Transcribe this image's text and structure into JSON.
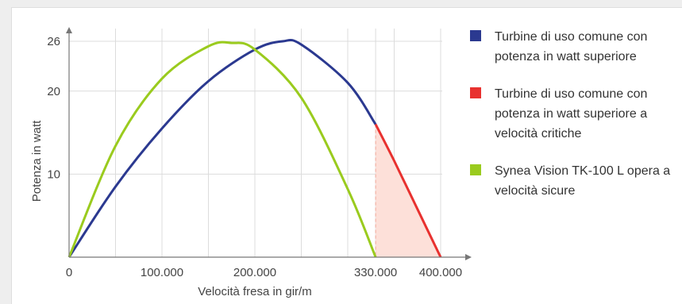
{
  "chart_data": {
    "type": "line",
    "title": "",
    "xlabel": "Velocità fresa in gir/m",
    "ylabel": "Potenza in watt",
    "xlim": [
      0,
      430000
    ],
    "ylim": [
      0,
      27.5
    ],
    "x_ticks": [
      {
        "value": 0,
        "label": "0"
      },
      {
        "value": 100000,
        "label": "100.000"
      },
      {
        "value": 200000,
        "label": "200.000"
      },
      {
        "value": 330000,
        "label": "330.000"
      },
      {
        "value": 400000,
        "label": "400.000"
      }
    ],
    "y_ticks": [
      {
        "value": 10,
        "label": "10"
      },
      {
        "value": 20,
        "label": "20"
      },
      {
        "value": 26,
        "label": "26"
      }
    ],
    "x_gridlines": [
      50000,
      100000,
      150000,
      200000,
      250000,
      300000,
      330000,
      350000,
      400000
    ],
    "y_gridlines": [
      10,
      20,
      26
    ],
    "grid": true,
    "legend_position": "right",
    "series": [
      {
        "name": "Turbine di uso comune con potenza in watt superiore",
        "color": "#2b3990",
        "x": [
          0,
          50000,
          100000,
          150000,
          200000,
          230000,
          250000,
          300000,
          330000
        ],
        "y": [
          0,
          8.5,
          15.5,
          21.2,
          25.0,
          26.0,
          25.6,
          21.0,
          16.0
        ]
      },
      {
        "name": "Turbine di uso comune con potenza in watt superiore a velocità critiche",
        "color": "#e8312f",
        "fill": "#fde0d9",
        "x": [
          330000,
          350000,
          375000,
          400000
        ],
        "y": [
          16.0,
          11.6,
          5.8,
          0
        ]
      },
      {
        "name": "Synea Vision TK-100 L opera a velocità sicure",
        "color": "#9acb1e",
        "x": [
          0,
          50000,
          100000,
          150000,
          175000,
          200000,
          250000,
          300000,
          330000
        ],
        "y": [
          0,
          13.4,
          21.5,
          25.4,
          25.8,
          25.0,
          19.2,
          8.2,
          0
        ]
      }
    ]
  },
  "legend": [
    {
      "text": "Turbine di uso comune con potenza in watt superiore",
      "color": "#2b3990"
    },
    {
      "text": "Turbine di uso comune con potenza in watt superiore a velocità critiche",
      "color": "#e8312f"
    },
    {
      "text": "Synea Vision TK-100 L opera a velocità sicure",
      "color": "#9acb1e"
    }
  ]
}
